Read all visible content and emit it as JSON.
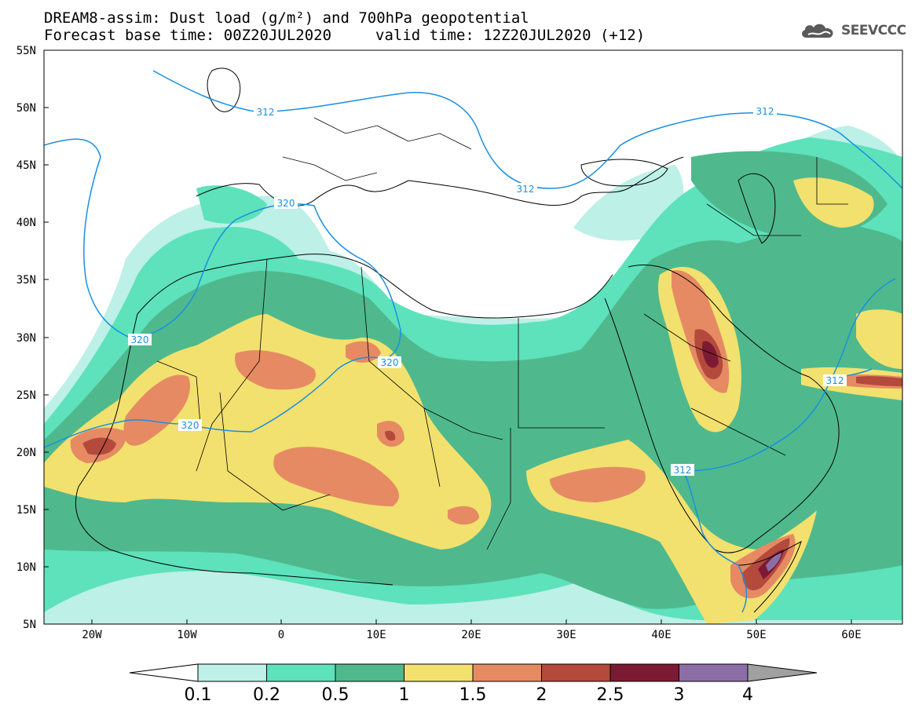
{
  "header": {
    "title": "DREAM8-assim: Dust load (g/m²) and 700hPa geopotential",
    "base_time": "Forecast base time: 00Z20JUL2020",
    "valid_time": "valid time: 12Z20JUL2020 (+12)"
  },
  "logo": {
    "text": "SEEVCCC",
    "icon": "cloud-icon"
  },
  "axes": {
    "lat_labels": [
      "55N",
      "50N",
      "45N",
      "40N",
      "35N",
      "30N",
      "25N",
      "20N",
      "15N",
      "10N",
      "5N"
    ],
    "lon_labels": [
      "20W",
      "10W",
      "0",
      "10E",
      "20E",
      "30E",
      "40E",
      "50E",
      "60E"
    ]
  },
  "contours": {
    "label_312": "312",
    "label_320": "320",
    "color": "#1a8fe0"
  },
  "colorbar": {
    "levels": [
      "0.1",
      "0.2",
      "0.5",
      "1",
      "1.5",
      "2",
      "2.5",
      "3",
      "4"
    ],
    "colors": [
      "#ffffff",
      "#bdf0e6",
      "#5de2bb",
      "#4fb98d",
      "#f2e16e",
      "#e68a64",
      "#b34a3c",
      "#7d1a33",
      "#8c6ea6",
      "#a0a0a0"
    ]
  },
  "map_colors": {
    "c01": "#bdf0e6",
    "c02": "#5de2bb",
    "c05": "#4fb98d",
    "c10": "#f2e16e",
    "c15": "#e68a64",
    "c20": "#b34a3c",
    "c25": "#7d1a33",
    "c30": "#8c6ea6"
  }
}
